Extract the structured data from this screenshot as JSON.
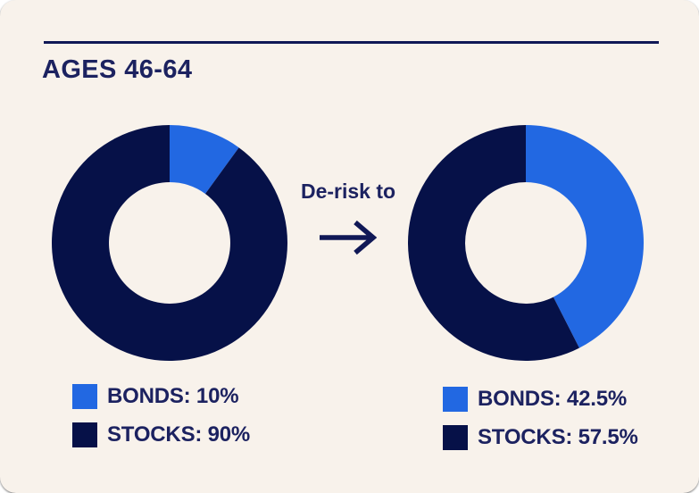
{
  "page": {
    "card_background": "#F8F2EB",
    "rule_color": "#101856",
    "text_color": "#1C2260"
  },
  "header": {
    "title": "AGES 46-64"
  },
  "transition": {
    "label": "De-risk to",
    "arrow_icon": "right-arrow"
  },
  "chart_data": [
    {
      "type": "pie",
      "variant": "donut",
      "position": "left",
      "categories": [
        "BONDS",
        "STOCKS"
      ],
      "values": [
        10,
        90
      ],
      "unit": "%",
      "slice_colors": [
        "#2268E2",
        "#061148"
      ],
      "start_angle_deg": 0,
      "direction": "clockwise",
      "inner_radius_ratio": 0.515,
      "legend_position": "below",
      "legend": [
        {
          "label": "BONDS: 10%",
          "color": "#2268E2"
        },
        {
          "label": "STOCKS: 90%",
          "color": "#061148"
        }
      ]
    },
    {
      "type": "pie",
      "variant": "donut",
      "position": "right",
      "categories": [
        "BONDS",
        "STOCKS"
      ],
      "values": [
        42.5,
        57.5
      ],
      "unit": "%",
      "slice_colors": [
        "#2268E2",
        "#061148"
      ],
      "start_angle_deg": 0,
      "direction": "clockwise",
      "inner_radius_ratio": 0.515,
      "legend_position": "below",
      "legend": [
        {
          "label": "BONDS: 42.5%",
          "color": "#2268E2"
        },
        {
          "label": "STOCKS: 57.5%",
          "color": "#061148"
        }
      ]
    }
  ]
}
